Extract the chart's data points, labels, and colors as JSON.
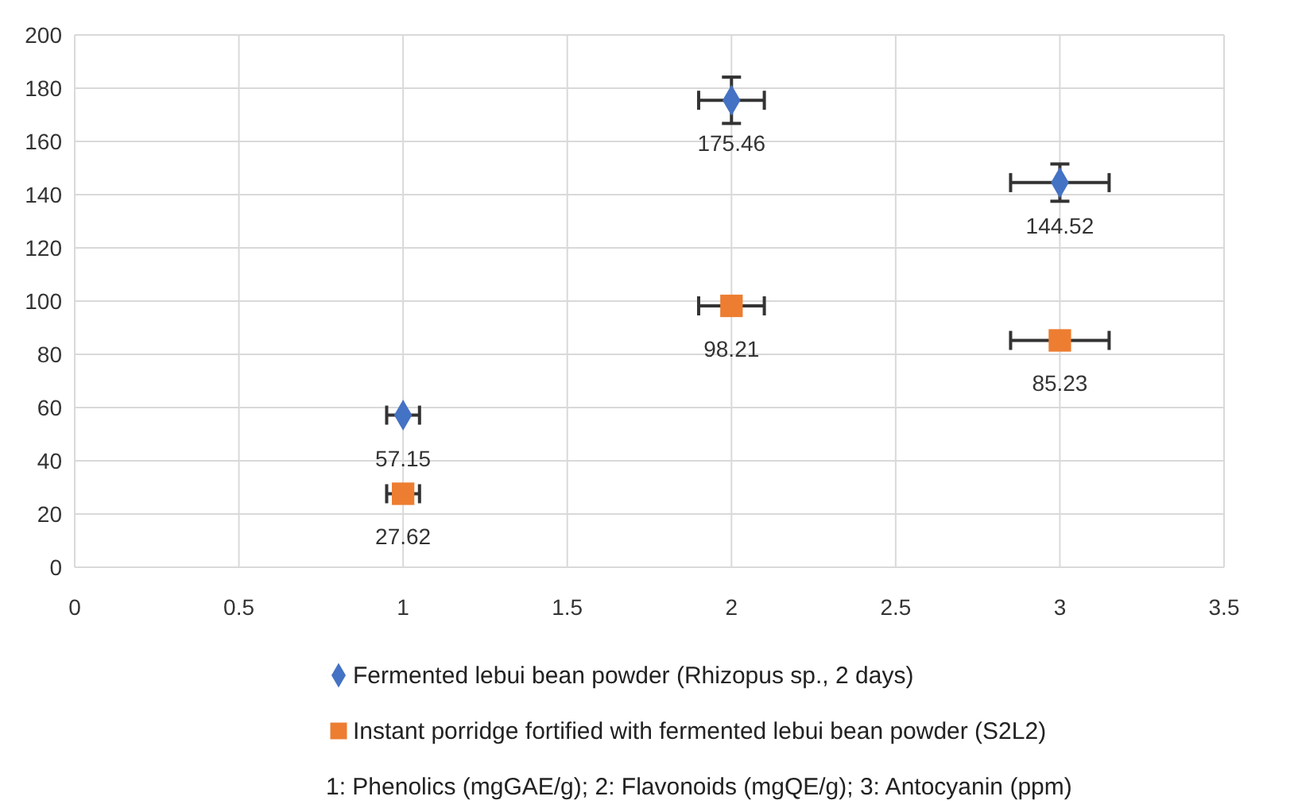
{
  "chart_data": {
    "type": "scatter",
    "x": [
      1,
      2,
      3
    ],
    "series": [
      {
        "name": "Fermented lebui bean powder (Rhizopus sp., 2 days)",
        "color": "#4472c4",
        "marker": "diamond",
        "values": [
          57.15,
          175.46,
          144.52
        ],
        "errors": [
          null,
          8.7,
          7
        ],
        "xerrors": [
          0.05,
          0.1,
          0.15
        ]
      },
      {
        "name": "Instant porridge fortified with fermented lebui bean powder (S2L2)",
        "color": "#ed7d31",
        "marker": "square",
        "values": [
          27.62,
          98.21,
          85.23
        ],
        "errors": [
          null,
          null,
          null
        ],
        "xerrors": [
          0.05,
          0.1,
          0.15
        ]
      }
    ],
    "data_labels": true,
    "xlim": [
      0,
      3.5
    ],
    "xticks": [
      0,
      0.5,
      1,
      1.5,
      2,
      2.5,
      3,
      3.5
    ],
    "ylim": [
      0,
      200
    ],
    "yticks": [
      0,
      20,
      40,
      60,
      80,
      100,
      120,
      140,
      160,
      180,
      200
    ],
    "grid": true,
    "legend": "bottom",
    "annotations": [
      "1: Phenolics (mgGAE/g); 2: Flavonoids (mgQE/g); 3: Antocyanin (ppm)"
    ]
  }
}
